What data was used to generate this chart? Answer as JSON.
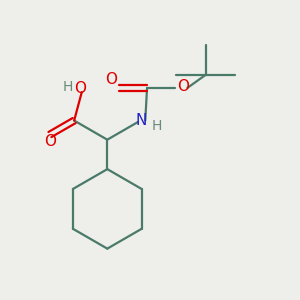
{
  "background_color": "#eeeeea",
  "bond_color": "#4a7a6a",
  "oxygen_color": "#dd0000",
  "nitrogen_color": "#2222cc",
  "gray_color": "#6a8a7a",
  "line_width": 1.6,
  "figsize": [
    3.0,
    3.0
  ],
  "dpi": 100,
  "xlim": [
    0,
    10
  ],
  "ylim": [
    0,
    10
  ]
}
